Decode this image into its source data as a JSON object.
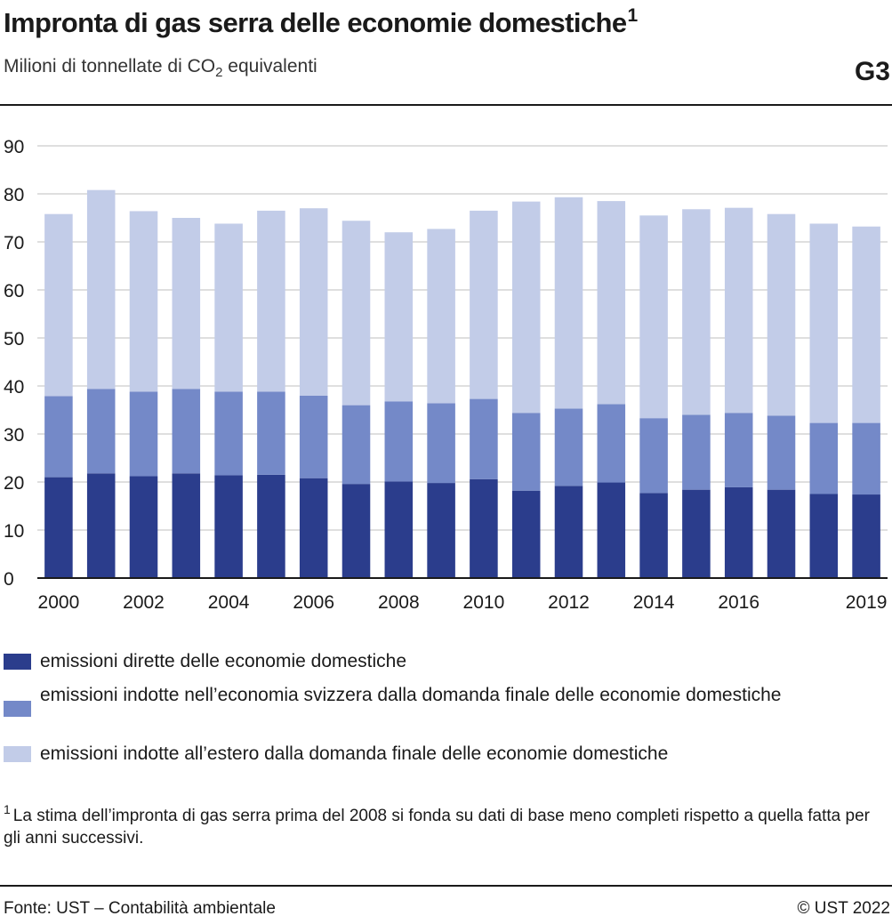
{
  "title": "Impronta di gas serra delle economie domestiche",
  "title_note": "1",
  "subtitle_pre": "Milioni di tonnellate di CO",
  "subtitle_sub": "2",
  "subtitle_post": " equivalenti",
  "graph_code": "G3",
  "chart_data": {
    "type": "bar",
    "stacked": true,
    "x": [
      2000,
      2001,
      2002,
      2003,
      2004,
      2005,
      2006,
      2007,
      2008,
      2009,
      2010,
      2011,
      2012,
      2013,
      2014,
      2015,
      2016,
      2017,
      2018,
      2019
    ],
    "x_tick_labels": [
      "2000",
      "",
      "2002",
      "",
      "2004",
      "",
      "2006",
      "",
      "2008",
      "",
      "2010",
      "",
      "2012",
      "",
      "2014",
      "",
      "2016",
      "",
      "",
      "2019"
    ],
    "series": [
      {
        "name": "emissioni dirette delle economie domestiche",
        "color": "#2b3d8c",
        "values": [
          21.0,
          21.8,
          21.2,
          21.8,
          21.4,
          21.5,
          20.8,
          19.6,
          20.1,
          19.8,
          20.6,
          18.2,
          19.2,
          19.9,
          17.7,
          18.4,
          18.9,
          18.4,
          17.5,
          17.4
        ]
      },
      {
        "name": "emissioni indotte nell’economia svizzera dalla domanda finale delle economie domestiche",
        "color": "#7489c8",
        "values": [
          16.9,
          17.6,
          17.6,
          17.6,
          17.4,
          17.3,
          17.2,
          16.4,
          16.7,
          16.6,
          16.7,
          16.2,
          16.1,
          16.3,
          15.6,
          15.6,
          15.5,
          15.4,
          14.8,
          14.9
        ]
      },
      {
        "name": "emissioni indotte all’estero dalla domanda finale delle economie domestiche",
        "color": "#c2cce8",
        "values": [
          37.9,
          41.4,
          37.6,
          35.6,
          35.0,
          37.7,
          39.0,
          38.4,
          35.2,
          36.3,
          39.2,
          44.0,
          44.0,
          42.3,
          42.2,
          42.8,
          42.7,
          42.0,
          41.5,
          40.9
        ]
      }
    ],
    "ylim": [
      0,
      90
    ],
    "y_ticks": [
      0,
      10,
      20,
      30,
      40,
      50,
      60,
      70,
      80,
      90
    ],
    "grid": true,
    "legend_position": "bottom"
  },
  "footnote_mark": "1",
  "footnote_text": "La stima dell’impronta di gas serra prima del 2008 si fonda su dati di base meno completi rispetto a quella fatta per gli anni successivi.",
  "source": "Fonte: UST – Contabilità ambientale",
  "copyright": "© UST 2022"
}
